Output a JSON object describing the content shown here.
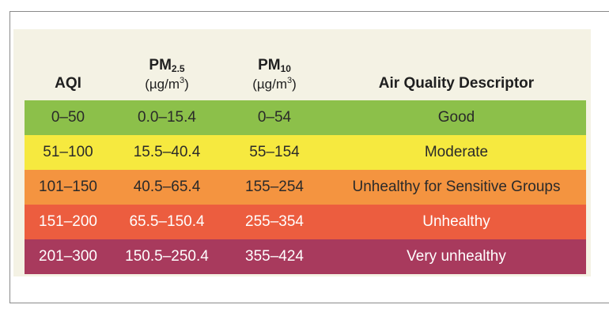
{
  "table": {
    "headers": [
      {
        "main": "AQI",
        "sub": "",
        "unit_prefix": "",
        "unit_sup": "",
        "unit_suffix": ""
      },
      {
        "main": "PM",
        "sub": "2.5",
        "unit_prefix": "(µg/m",
        "unit_sup": "3",
        "unit_suffix": ")"
      },
      {
        "main": "PM",
        "sub": "10",
        "unit_prefix": "(µg/m",
        "unit_sup": "3",
        "unit_suffix": ")"
      },
      {
        "main": "Air Quality Descriptor",
        "sub": "",
        "unit_prefix": "",
        "unit_sup": "",
        "unit_suffix": ""
      }
    ],
    "rows": [
      {
        "aqi": "0–50",
        "pm25": "0.0–15.4",
        "pm10": "0–54",
        "descriptor": "Good",
        "color": "#8cc04a"
      },
      {
        "aqi": "51–100",
        "pm25": "15.5–40.4",
        "pm10": "55–154",
        "descriptor": "Moderate",
        "color": "#f6e93f"
      },
      {
        "aqi": "101–150",
        "pm25": "40.5–65.4",
        "pm10": "155–254",
        "descriptor": "Unhealthy for Sensitive Groups",
        "color": "#f49440"
      },
      {
        "aqi": "151–200",
        "pm25": "65.5–150.4",
        "pm10": "255–354",
        "descriptor": "Unhealthy",
        "color": "#ec5d3f"
      },
      {
        "aqi": "201–300",
        "pm25": "150.5–250.4",
        "pm10": "355–424",
        "descriptor": "Very unhealthy",
        "color": "#a83a5d"
      }
    ]
  }
}
